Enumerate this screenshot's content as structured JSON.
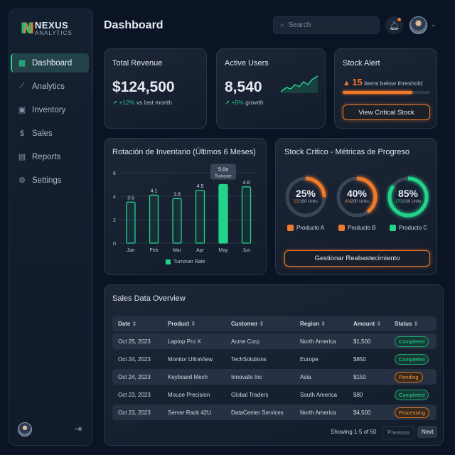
{
  "brand": {
    "name": "NEXUS",
    "tagline": "ANALYTICS"
  },
  "sidebar": {
    "items": [
      {
        "label": "Dashboard",
        "icon": "grid-icon",
        "active": true
      },
      {
        "label": "Analytics",
        "icon": "line-chart-icon"
      },
      {
        "label": "Inventory",
        "icon": "box-icon"
      },
      {
        "label": "Sales",
        "icon": "dollar-icon"
      },
      {
        "label": "Reports",
        "icon": "document-icon"
      },
      {
        "label": "Settings",
        "icon": "gear-icon"
      }
    ]
  },
  "header": {
    "title": "Dashboard",
    "search_placeholder": "Search"
  },
  "kpis": {
    "revenue": {
      "title": "Total Revenue",
      "value": "$124,500",
      "delta": "+12%",
      "delta_text": "vs last month"
    },
    "users": {
      "title": "Active Users",
      "value": "8,540",
      "delta": "+5%",
      "delta_text": "growth"
    },
    "stock": {
      "title": "Stock Alert",
      "count": "15",
      "text": "items below threshold",
      "progress": 0.8,
      "button": "View Critical Stock"
    }
  },
  "chart_data": {
    "type": "bar",
    "title": "Rotación de Inventario (Últimos 6 Meses)",
    "categories": [
      "Jan",
      "Feb",
      "Mar",
      "Apr",
      "May",
      "Jun"
    ],
    "series": [
      {
        "name": "Turnover Rate",
        "values": [
          3.5,
          4.1,
          3.8,
          4.5,
          5.0,
          4.8
        ]
      }
    ],
    "ylim": [
      0,
      6
    ],
    "yticks": [
      "0",
      "2",
      "4",
      "6"
    ],
    "value_labels": [
      "3.5",
      "4.1",
      "3.8",
      "4.5",
      "",
      "4.8"
    ],
    "tooltip": {
      "value": "5.0x",
      "label": "Turnover"
    },
    "legend": "bottom",
    "grid": true,
    "color": "#22d38a"
  },
  "stock_panel": {
    "title": "Stock Critico - Métricas de Progreso",
    "items": [
      {
        "pct": "25%",
        "fraction": 0.25,
        "current": "25",
        "total": "/100 Units",
        "label": "Producto A",
        "color": "#f07a2a"
      },
      {
        "pct": "40%",
        "fraction": 0.4,
        "current": "80",
        "total": "/200 Units",
        "label": "Producto B",
        "color": "#f07a2a"
      },
      {
        "pct": "85%",
        "fraction": 0.85,
        "current": "170",
        "total": "/200 Units",
        "label": "Producto C",
        "color": "#22d38a"
      }
    ],
    "button": "Gestionar Reabastecimiento"
  },
  "sales": {
    "title": "Sales Data Overview",
    "columns": [
      "Date",
      "Product",
      "Customer",
      "Region",
      "Amount",
      "Status"
    ],
    "rows": [
      [
        "Oct 25, 2023",
        "Laptop Pro X",
        "Acme Corp",
        "North America",
        "$1,500",
        "Completed"
      ],
      [
        "Oct 24, 2023",
        "Monitor UltraView",
        "TechSolutions",
        "Europe",
        "$850",
        "Completed"
      ],
      [
        "Oct 24, 2023",
        "Keyboard Mech",
        "Innovate Inc",
        "Asia",
        "$150",
        "Pending"
      ],
      [
        "Oct 23, 2023",
        "Mouse Precision",
        "Global Traders",
        "South America",
        "$80",
        "Completed"
      ],
      [
        "Oct 23, 2023",
        "Server Rack 42U",
        "DataCenter Services",
        "North America",
        "$4,500",
        "Processing"
      ]
    ],
    "showing": "Showing 1-5 of 50",
    "prev": "Previous",
    "next": "Next"
  }
}
